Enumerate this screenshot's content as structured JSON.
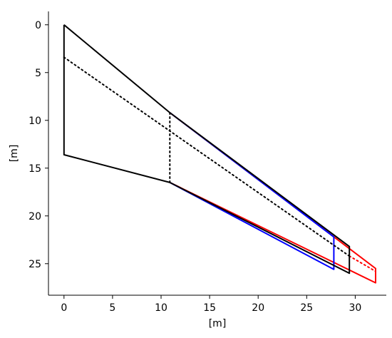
{
  "chart_data": {
    "type": "line",
    "title": "",
    "xlabel": "[m]",
    "ylabel": "[m]",
    "xlim": [
      -1.6,
      33.2
    ],
    "ylim": [
      28.3,
      -1.4
    ],
    "y_inverted": true,
    "grid": false,
    "legend": "none",
    "xticks": [
      0,
      5,
      10,
      15,
      20,
      25,
      30
    ],
    "yticks": [
      0,
      5,
      10,
      15,
      20,
      25
    ],
    "series": [
      {
        "color": "#ff0000",
        "style": "solid",
        "points": [
          [
            10.9,
            9.2
          ],
          [
            32.1,
            25.5
          ],
          [
            32.1,
            27.0
          ],
          [
            10.9,
            16.5
          ]
        ]
      },
      {
        "color": "#ff0000",
        "style": "dotted",
        "points": [
          [
            29.4,
            24.2
          ],
          [
            32.1,
            25.8
          ]
        ]
      },
      {
        "color": "#0000ff",
        "style": "solid",
        "points": [
          [
            10.9,
            9.2
          ],
          [
            27.8,
            22.2
          ],
          [
            27.8,
            25.6
          ],
          [
            10.9,
            16.5
          ]
        ]
      },
      {
        "color": "#000000",
        "style": "solid",
        "points": [
          [
            0,
            0
          ],
          [
            10.9,
            9.2
          ],
          [
            29.4,
            23.2
          ],
          [
            29.4,
            26.0
          ],
          [
            10.9,
            16.5
          ],
          [
            0,
            13.6
          ],
          [
            0,
            0
          ]
        ]
      },
      {
        "color": "#000000",
        "style": "dotted",
        "points": [
          [
            0,
            3.4
          ],
          [
            29.4,
            24.2
          ]
        ]
      },
      {
        "color": "#000000",
        "style": "dotted",
        "points": [
          [
            10.9,
            9.2
          ],
          [
            10.9,
            16.5
          ]
        ]
      }
    ]
  }
}
